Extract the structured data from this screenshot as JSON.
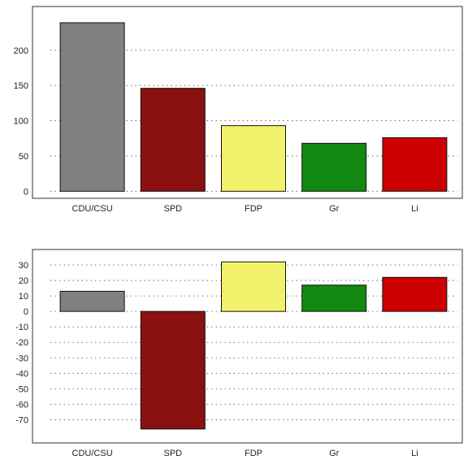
{
  "chart_data": [
    {
      "type": "bar",
      "categories": [
        "CDU/CSU",
        "SPD",
        "FDP",
        "Gr",
        "Li"
      ],
      "values": [
        239,
        146,
        93,
        68,
        76
      ],
      "colors": [
        "#808080",
        "#8b1010",
        "#f2f26a",
        "#128a12",
        "#cc0000"
      ],
      "yticks": [
        0,
        50,
        100,
        150,
        200
      ],
      "ylim": [
        -10,
        262
      ],
      "grid": true,
      "title": "",
      "xlabel": "",
      "ylabel": ""
    },
    {
      "type": "bar",
      "categories": [
        "CDU/CSU",
        "SPD",
        "FDP",
        "Gr",
        "Li"
      ],
      "values": [
        13,
        -76,
        32,
        17,
        22
      ],
      "colors": [
        "#808080",
        "#8b1010",
        "#f2f26a",
        "#128a12",
        "#cc0000"
      ],
      "yticks": [
        30,
        20,
        10,
        0,
        -10,
        -20,
        -30,
        -40,
        -50,
        -60,
        -70
      ],
      "ytick_labels": [
        "30",
        "20",
        "10",
        "0",
        "-10",
        "-20",
        "-30",
        "-40",
        "-50",
        "-60",
        "-70"
      ],
      "ylim": [
        -85,
        40
      ],
      "grid": true,
      "title": "",
      "xlabel": "",
      "ylabel": ""
    }
  ]
}
